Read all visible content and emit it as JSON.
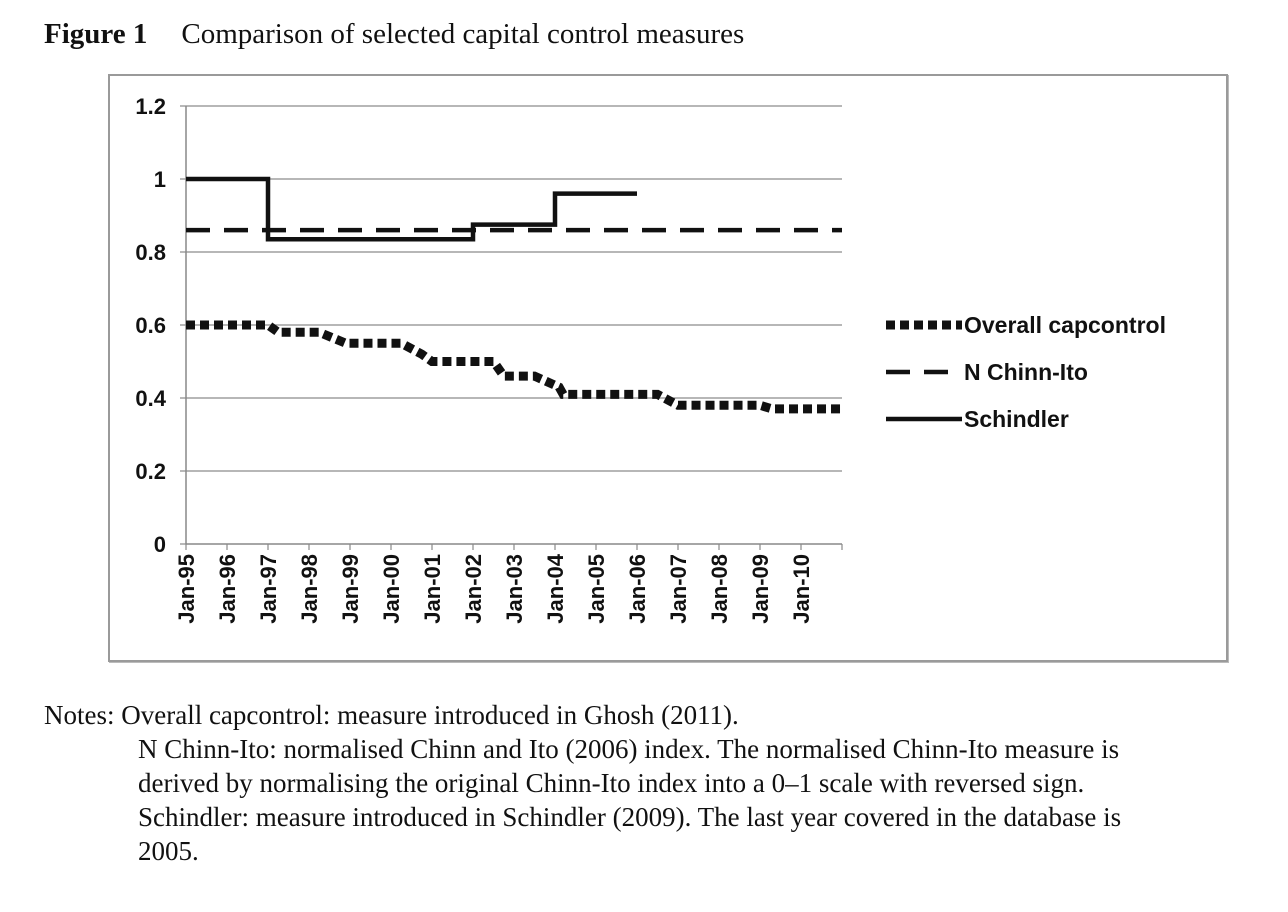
{
  "figure": {
    "label": "Figure 1",
    "caption": "Comparison of selected capital control measures"
  },
  "chart_data": {
    "type": "line",
    "x": [
      "Jan-95",
      "Jan-96",
      "Jan-97",
      "Jan-98",
      "Jan-99",
      "Jan-00",
      "Jan-01",
      "Jan-02",
      "Jan-03",
      "Jan-04",
      "Jan-05",
      "Jan-06",
      "Jan-07",
      "Jan-08",
      "Jan-09",
      "Jan-10"
    ],
    "x_range": [
      1995,
      2011
    ],
    "ylim": [
      0,
      1.2
    ],
    "yticks": [
      "0",
      "0.2",
      "0.4",
      "0.6",
      "0.8",
      "1",
      "1.2"
    ],
    "ytick_values": [
      0,
      0.2,
      0.4,
      0.6,
      0.8,
      1.0,
      1.2
    ],
    "grid": true,
    "legend_position": "right",
    "series": [
      {
        "name": "Overall capcontrol",
        "style": "dotted",
        "color": "#111111",
        "points": [
          [
            1995.0,
            0.6
          ],
          [
            1997.0,
            0.6
          ],
          [
            1997.25,
            0.58
          ],
          [
            1998.25,
            0.58
          ],
          [
            1998.9,
            0.55
          ],
          [
            2000.25,
            0.55
          ],
          [
            2000.75,
            0.52
          ],
          [
            2001.0,
            0.5
          ],
          [
            2002.5,
            0.5
          ],
          [
            2002.75,
            0.46
          ],
          [
            2003.5,
            0.46
          ],
          [
            2004.1,
            0.43
          ],
          [
            2004.2,
            0.41
          ],
          [
            2006.5,
            0.41
          ],
          [
            2007.0,
            0.38
          ],
          [
            2009.0,
            0.38
          ],
          [
            2009.3,
            0.37
          ],
          [
            2011.0,
            0.37
          ]
        ]
      },
      {
        "name": "N Chinn-Ito",
        "style": "dashed",
        "color": "#111111",
        "points": [
          [
            1995.0,
            0.86
          ],
          [
            2011.0,
            0.86
          ]
        ]
      },
      {
        "name": "Schindler",
        "style": "solid",
        "color": "#111111",
        "points": [
          [
            1995.0,
            1.0
          ],
          [
            1997.0,
            1.0
          ],
          [
            1997.0,
            0.835
          ],
          [
            2002.0,
            0.835
          ],
          [
            2002.0,
            0.875
          ],
          [
            2004.0,
            0.875
          ],
          [
            2004.0,
            0.96
          ],
          [
            2006.0,
            0.96
          ]
        ]
      }
    ]
  },
  "notes": {
    "line1": "Notes: Overall capcontrol: measure introduced in Ghosh (2011).",
    "line2": "N Chinn-Ito: normalised Chinn and Ito (2006) index. The normalised Chinn-Ito measure is derived by normalising the original Chinn-Ito index into a 0–1 scale with reversed sign.",
    "line3": "Schindler: measure introduced in Schindler (2009). The last year covered in the database is 2005."
  }
}
